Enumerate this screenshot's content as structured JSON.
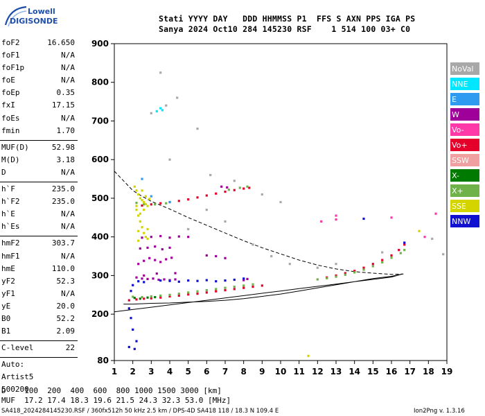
{
  "logo": {
    "line1": "Lowell",
    "line2": "DIGISONDE"
  },
  "header": {
    "row1": "Stati YYYY DAY   DDD HHMMSS P1  FFS S AXN PPS IGA PS",
    "row2": "Sanya 2024 Oct10 284 145230 RSF    1 514 100 03+ C0"
  },
  "params": [
    {
      "label": "foF2",
      "value": "16.650"
    },
    {
      "label": "foF1",
      "value": "N/A"
    },
    {
      "label": "foF1p",
      "value": "N/A"
    },
    {
      "label": "foE",
      "value": "N/A"
    },
    {
      "label": "foEp",
      "value": "0.35"
    },
    {
      "label": "fxI",
      "value": "17.15"
    },
    {
      "label": "foEs",
      "value": "N/A"
    },
    {
      "label": "fmin",
      "value": "1.70"
    },
    {
      "sep": true
    },
    {
      "label": "MUF(D)",
      "value": "52.98"
    },
    {
      "label": "M(D)",
      "value": "3.18"
    },
    {
      "label": "D",
      "value": "N/A"
    },
    {
      "sep": true
    },
    {
      "label": "h`F",
      "value": "235.0"
    },
    {
      "label": "h`F2",
      "value": "235.0"
    },
    {
      "label": "h`E",
      "value": "N/A"
    },
    {
      "label": "h`Es",
      "value": "N/A"
    },
    {
      "sep": true
    },
    {
      "label": "hmF2",
      "value": "303.7"
    },
    {
      "label": "hmF1",
      "value": "N/A"
    },
    {
      "label": "hmE",
      "value": "110.0"
    },
    {
      "label": "yF2",
      "value": "52.3"
    },
    {
      "label": "yF1",
      "value": "N/A"
    },
    {
      "label": "yE",
      "value": "20.0"
    },
    {
      "label": "B0",
      "value": "52.2"
    },
    {
      "label": "B1",
      "value": "2.09"
    },
    {
      "sep": true
    },
    {
      "label": "C-level",
      "value": "22"
    },
    {
      "sep": true
    },
    {
      "label": "Auto:",
      "value": ""
    },
    {
      "label": "Artist5",
      "value": ""
    },
    {
      "label": "500200",
      "value": ""
    }
  ],
  "legend": [
    {
      "label": "NoVal",
      "color": "#a8a8a8"
    },
    {
      "label": "NNE",
      "color": "#00e6ff"
    },
    {
      "label": "E",
      "color": "#2f9bf0"
    },
    {
      "label": "W",
      "color": "#a0009a"
    },
    {
      "label": "Vo-",
      "color": "#ff3aa8"
    },
    {
      "label": "Vo+",
      "color": "#e4002b"
    },
    {
      "label": "SSW",
      "color": "#f0a0a0"
    },
    {
      "label": "X-",
      "color": "#007a00"
    },
    {
      "label": "X+",
      "color": "#6fb24a"
    },
    {
      "label": "SSE",
      "color": "#d4d400"
    },
    {
      "label": "NNW",
      "color": "#1010d0"
    }
  ],
  "footer": {
    "d_row": "D    100  200  400  600  800 1000 1500 3000 [km]",
    "muf_row": "MUF  17.2 17.4 18.3 19.6 21.5 24.3 32.3 53.0 [MHz]",
    "info": "SA418_2024284145230.RSF / 360fx512h 50 kHz 2.5 km / DPS-4D SA418 118 / 18.3 N 109.4 E",
    "version": "Ion2Png v. 1.3.16"
  },
  "chart_data": {
    "type": "scatter",
    "xlim": [
      1,
      19
    ],
    "ylim": [
      80,
      900
    ],
    "x_ticks": [
      1,
      2,
      3,
      4,
      5,
      6,
      7,
      8,
      9,
      10,
      11,
      12,
      13,
      14,
      15,
      16,
      17,
      18,
      19
    ],
    "y_ticks": [
      80,
      200,
      300,
      400,
      500,
      600,
      700,
      800,
      900
    ],
    "grid": false,
    "series": [
      {
        "name": "Vo+",
        "color": "#e4002b",
        "points": [
          [
            1.8,
            236
          ],
          [
            2.2,
            238
          ],
          [
            2.6,
            240
          ],
          [
            3.0,
            241
          ],
          [
            3.5,
            243
          ],
          [
            4.0,
            246
          ],
          [
            4.5,
            248
          ],
          [
            5.0,
            251
          ],
          [
            5.5,
            253
          ],
          [
            6.0,
            256
          ],
          [
            6.5,
            259
          ],
          [
            7.0,
            262
          ],
          [
            7.5,
            265
          ],
          [
            8.0,
            268
          ],
          [
            8.5,
            271
          ],
          [
            9.0,
            274
          ],
          [
            12.5,
            295
          ],
          [
            13.0,
            300
          ],
          [
            13.5,
            306
          ],
          [
            14.0,
            312
          ],
          [
            14.5,
            320
          ],
          [
            15.0,
            330
          ],
          [
            15.5,
            340
          ],
          [
            16.0,
            352
          ],
          [
            16.4,
            366
          ],
          [
            16.7,
            380
          ],
          [
            2.5,
            481
          ],
          [
            3.0,
            484
          ],
          [
            3.5,
            487
          ],
          [
            4.0,
            490
          ],
          [
            4.5,
            493
          ],
          [
            5.0,
            497
          ],
          [
            5.5,
            502
          ],
          [
            6.0,
            507
          ],
          [
            6.5,
            512
          ],
          [
            7.0,
            517
          ],
          [
            7.5,
            521
          ],
          [
            8.0,
            525
          ],
          [
            8.3,
            527
          ]
        ]
      },
      {
        "name": "X+",
        "color": "#6fb24a",
        "points": [
          [
            2.0,
            245
          ],
          [
            2.5,
            244
          ],
          [
            3.0,
            246
          ],
          [
            3.5,
            248
          ],
          [
            4.0,
            250
          ],
          [
            4.5,
            253
          ],
          [
            5.0,
            256
          ],
          [
            5.5,
            259
          ],
          [
            6.0,
            262
          ],
          [
            6.5,
            265
          ],
          [
            7.0,
            268
          ],
          [
            7.5,
            271
          ],
          [
            8.0,
            274
          ],
          [
            8.5,
            277
          ],
          [
            12.0,
            290
          ],
          [
            12.5,
            293
          ],
          [
            13.0,
            297
          ],
          [
            13.5,
            302
          ],
          [
            14.0,
            308
          ],
          [
            14.5,
            315
          ],
          [
            15.0,
            324
          ],
          [
            15.5,
            334
          ],
          [
            16.0,
            346
          ],
          [
            16.5,
            358
          ],
          [
            16.7,
            366
          ],
          [
            2.2,
            488
          ],
          [
            2.6,
            484
          ],
          [
            3.2,
            484
          ],
          [
            3.8,
            487
          ],
          [
            7.2,
            522
          ],
          [
            7.8,
            527
          ],
          [
            8.2,
            530
          ]
        ]
      },
      {
        "name": "X-",
        "color": "#007a00",
        "points": [
          [
            2.1,
            242
          ],
          [
            2.4,
            240
          ],
          [
            2.8,
            243
          ],
          [
            3.2,
            244
          ]
        ]
      },
      {
        "name": "W",
        "color": "#a0009a",
        "points": [
          [
            2.2,
            295
          ],
          [
            2.5,
            292
          ],
          [
            2.8,
            291
          ],
          [
            3.1,
            292
          ],
          [
            3.4,
            289
          ],
          [
            3.7,
            290
          ],
          [
            4.0,
            288
          ],
          [
            4.3,
            290
          ],
          [
            2.3,
            330
          ],
          [
            2.6,
            338
          ],
          [
            2.9,
            345
          ],
          [
            3.2,
            340
          ],
          [
            3.5,
            335
          ],
          [
            3.8,
            342
          ],
          [
            4.1,
            346
          ],
          [
            2.4,
            370
          ],
          [
            2.8,
            372
          ],
          [
            3.2,
            375
          ],
          [
            3.6,
            368
          ],
          [
            4.0,
            372
          ],
          [
            2.5,
            398
          ],
          [
            3.0,
            400
          ],
          [
            3.5,
            402
          ],
          [
            4.0,
            398
          ],
          [
            4.5,
            401
          ],
          [
            5.0,
            400
          ],
          [
            6.0,
            352
          ],
          [
            6.5,
            350
          ],
          [
            7.0,
            345
          ],
          [
            8.0,
            288
          ],
          [
            8.2,
            291
          ],
          [
            6.8,
            530
          ],
          [
            7.1,
            528
          ],
          [
            2.6,
            300
          ],
          [
            3.3,
            305
          ],
          [
            4.3,
            306
          ]
        ]
      },
      {
        "name": "NNW",
        "color": "#1010d0",
        "points": [
          [
            1.9,
            260
          ],
          [
            2.0,
            275
          ],
          [
            1.8,
            215
          ],
          [
            1.9,
            190
          ],
          [
            2.0,
            160
          ],
          [
            2.2,
            130
          ],
          [
            2.1,
            110
          ],
          [
            1.8,
            115
          ],
          [
            2.3,
            285
          ],
          [
            2.6,
            283
          ],
          [
            3.5,
            287
          ],
          [
            4.0,
            286
          ],
          [
            4.5,
            284
          ],
          [
            5.0,
            287
          ],
          [
            5.5,
            286
          ],
          [
            6.0,
            288
          ],
          [
            6.5,
            285
          ],
          [
            7.0,
            287
          ],
          [
            7.5,
            289
          ],
          [
            8.0,
            292
          ],
          [
            14.5,
            447
          ],
          [
            16.7,
            385
          ]
        ]
      },
      {
        "name": "SSE",
        "color": "#d4d400",
        "points": [
          [
            2.1,
            530
          ],
          [
            2.2,
            520
          ],
          [
            2.3,
            510
          ],
          [
            2.4,
            500
          ],
          [
            2.5,
            495
          ],
          [
            2.6,
            490
          ],
          [
            2.7,
            485
          ],
          [
            2.8,
            480
          ],
          [
            2.2,
            470
          ],
          [
            2.3,
            455
          ],
          [
            2.4,
            440
          ],
          [
            2.5,
            425
          ],
          [
            2.6,
            410
          ],
          [
            2.7,
            400
          ],
          [
            2.8,
            395
          ],
          [
            2.3,
            415
          ],
          [
            2.5,
            520
          ],
          [
            2.7,
            505
          ],
          [
            2.2,
            480
          ],
          [
            2.6,
            470
          ],
          [
            2.4,
            460
          ],
          [
            2.9,
            498
          ],
          [
            2.3,
            390
          ],
          [
            2.8,
            420
          ],
          [
            17.5,
            415
          ],
          [
            11.5,
            92
          ]
        ]
      },
      {
        "name": "Vo-",
        "color": "#ff3aa8",
        "points": [
          [
            13.0,
            455
          ],
          [
            13.0,
            445
          ],
          [
            12.2,
            440
          ],
          [
            18.4,
            460
          ],
          [
            16.0,
            450
          ],
          [
            17.8,
            400
          ]
        ]
      },
      {
        "name": "NNE",
        "color": "#00e6ff",
        "points": [
          [
            3.3,
            725
          ],
          [
            3.6,
            728
          ],
          [
            3.5,
            733
          ]
        ]
      },
      {
        "name": "E",
        "color": "#2f9bf0",
        "points": [
          [
            2.5,
            550
          ],
          [
            4.0,
            490
          ],
          [
            3.0,
            505
          ]
        ]
      },
      {
        "name": "NoVal",
        "color": "#a8a8a8",
        "points": [
          [
            3.0,
            720
          ],
          [
            3.8,
            740
          ],
          [
            4.4,
            760
          ],
          [
            3.5,
            825
          ],
          [
            5.5,
            680
          ],
          [
            4.0,
            600
          ],
          [
            6.2,
            560
          ],
          [
            7.5,
            545
          ],
          [
            9.0,
            510
          ],
          [
            10.0,
            490
          ],
          [
            7.0,
            440
          ],
          [
            5.0,
            420
          ],
          [
            6.0,
            470
          ],
          [
            8.5,
            380
          ],
          [
            9.5,
            350
          ],
          [
            10.5,
            330
          ],
          [
            12.0,
            320
          ],
          [
            13.0,
            330
          ],
          [
            18.8,
            355
          ],
          [
            18.2,
            395
          ],
          [
            15.5,
            360
          ]
        ]
      }
    ],
    "curves": [
      {
        "name": "dashed",
        "style": "dashed",
        "points": [
          [
            1.0,
            570
          ],
          [
            1.5,
            545
          ],
          [
            2.0,
            520
          ],
          [
            2.5,
            505
          ],
          [
            3.0,
            492
          ],
          [
            4.0,
            472
          ],
          [
            5.0,
            450
          ],
          [
            6.0,
            430
          ],
          [
            7.0,
            410
          ],
          [
            8.0,
            390
          ],
          [
            9.0,
            372
          ],
          [
            10.0,
            356
          ],
          [
            11.0,
            340
          ],
          [
            12.0,
            327
          ],
          [
            13.0,
            317
          ],
          [
            14.0,
            310
          ],
          [
            15.0,
            306
          ],
          [
            16.0,
            303
          ],
          [
            16.65,
            304
          ]
        ]
      },
      {
        "name": "solid-profile",
        "style": "solid",
        "points": [
          [
            1.0,
            206
          ],
          [
            2.0,
            212
          ],
          [
            3.0,
            218
          ],
          [
            4.0,
            224
          ],
          [
            5.0,
            230
          ],
          [
            6.0,
            236
          ],
          [
            7.0,
            242
          ],
          [
            8.0,
            248
          ],
          [
            9.0,
            254
          ],
          [
            10.0,
            260
          ],
          [
            11.0,
            266
          ],
          [
            12.0,
            272
          ],
          [
            13.0,
            278
          ],
          [
            14.0,
            284
          ],
          [
            15.0,
            290
          ],
          [
            16.0,
            296
          ],
          [
            16.6,
            304
          ],
          [
            16.0,
            298
          ],
          [
            15.0,
            292
          ],
          [
            14.0,
            284
          ],
          [
            13.0,
            276
          ],
          [
            12.0,
            268
          ],
          [
            11.0,
            260
          ],
          [
            10.0,
            252
          ],
          [
            9.0,
            246
          ],
          [
            8.0,
            240
          ],
          [
            7.0,
            236
          ],
          [
            6.0,
            233
          ],
          [
            5.0,
            231
          ],
          [
            4.0,
            229
          ],
          [
            3.0,
            228
          ],
          [
            2.0,
            226
          ],
          [
            1.5,
            226
          ]
        ]
      }
    ]
  }
}
